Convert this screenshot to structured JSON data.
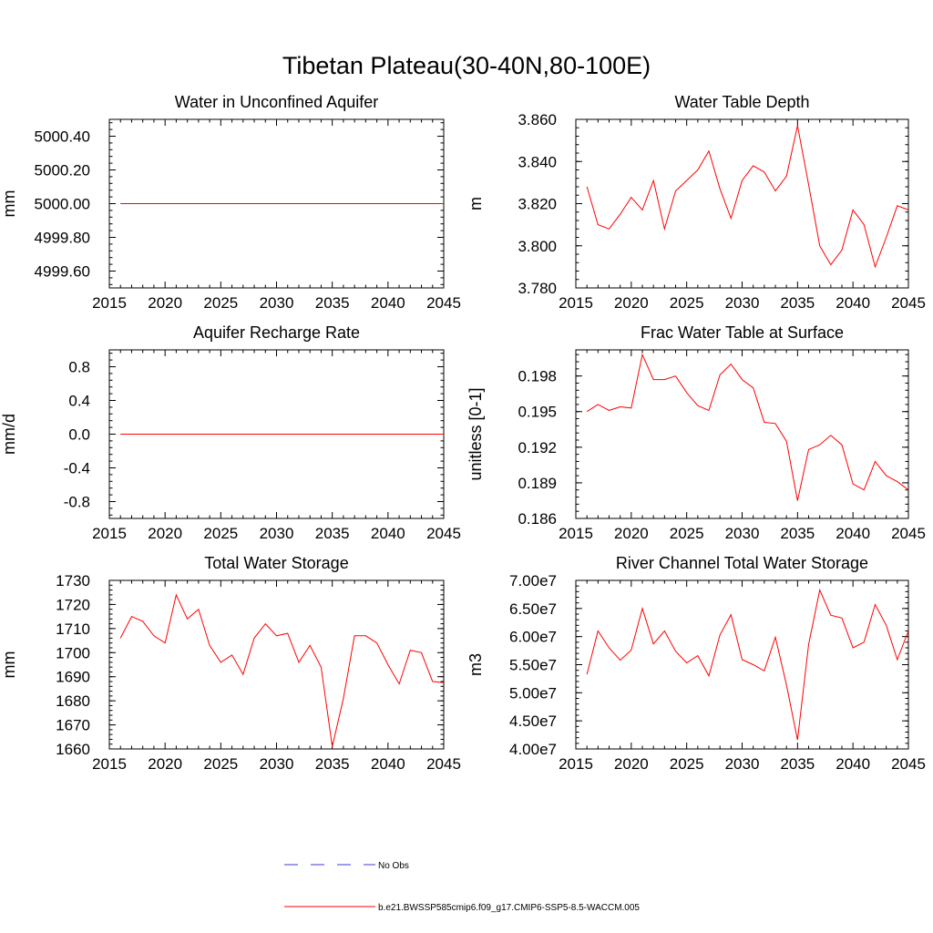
{
  "figure": {
    "title": "Tibetan Plateau(30-40N,80-100E)"
  },
  "legend": {
    "entries": [
      {
        "label": "No Obs",
        "color": "#3b3bd9",
        "style": "dashed"
      },
      {
        "label": "b.e21.BWSSP585cmip6.f09_g17.CMIP6-SSP5-8.5-WACCM.005",
        "color": "#ff0000",
        "style": "solid"
      }
    ]
  },
  "chart_data": [
    {
      "type": "line",
      "title": "Water in Unconfined Aquifer",
      "ylabel": "mm",
      "xlim": [
        2015,
        2045
      ],
      "ylim": [
        4999.5,
        5000.5
      ],
      "xticks": [
        "2015",
        "2020",
        "2025",
        "2030",
        "2035",
        "2040",
        "2045"
      ],
      "yticks": [
        "4999.60",
        "4999.80",
        "5000.00",
        "5000.20",
        "5000.40"
      ],
      "x": [
        2016,
        2017,
        2018,
        2019,
        2020,
        2021,
        2022,
        2023,
        2024,
        2025,
        2026,
        2027,
        2028,
        2029,
        2030,
        2031,
        2032,
        2033,
        2034,
        2035,
        2036,
        2037,
        2038,
        2039,
        2040,
        2041,
        2042,
        2043,
        2044,
        2045
      ],
      "series": [
        {
          "color": "#ff0000",
          "values": [
            5000,
            5000,
            5000,
            5000,
            5000,
            5000,
            5000,
            5000,
            5000,
            5000,
            5000,
            5000,
            5000,
            5000,
            5000,
            5000,
            5000,
            5000,
            5000,
            5000,
            5000,
            5000,
            5000,
            5000,
            5000,
            5000,
            5000,
            5000,
            5000,
            5000
          ]
        }
      ]
    },
    {
      "type": "line",
      "title": "Water Table Depth",
      "ylabel": "m",
      "xlim": [
        2015,
        2045
      ],
      "ylim": [
        3.78,
        3.86
      ],
      "xticks": [
        "2015",
        "2020",
        "2025",
        "2030",
        "2035",
        "2040",
        "2045"
      ],
      "yticks": [
        "3.780",
        "3.800",
        "3.820",
        "3.840",
        "3.860"
      ],
      "x": [
        2016,
        2017,
        2018,
        2019,
        2020,
        2021,
        2022,
        2023,
        2024,
        2025,
        2026,
        2027,
        2028,
        2029,
        2030,
        2031,
        2032,
        2033,
        2034,
        2035,
        2036,
        2037,
        2038,
        2039,
        2040,
        2041,
        2042,
        2043,
        2044,
        2045
      ],
      "series": [
        {
          "color": "#ff0000",
          "values": [
            3.828,
            3.81,
            3.808,
            3.815,
            3.823,
            3.817,
            3.831,
            3.808,
            3.826,
            3.831,
            3.836,
            3.845,
            3.827,
            3.813,
            3.831,
            3.838,
            3.835,
            3.826,
            3.833,
            3.857,
            3.829,
            3.8,
            3.791,
            3.798,
            3.817,
            3.81,
            3.79,
            3.804,
            3.819,
            3.817
          ]
        }
      ]
    },
    {
      "type": "line",
      "title": "Aquifer Recharge Rate",
      "ylabel": "mm/d",
      "xlim": [
        2015,
        2045
      ],
      "ylim": [
        -1.0,
        1.0
      ],
      "xticks": [
        "2015",
        "2020",
        "2025",
        "2030",
        "2035",
        "2040",
        "2045"
      ],
      "yticks": [
        "-0.8",
        "-0.4",
        "0.0",
        "0.4",
        "0.8"
      ],
      "x": [
        2016,
        2017,
        2018,
        2019,
        2020,
        2021,
        2022,
        2023,
        2024,
        2025,
        2026,
        2027,
        2028,
        2029,
        2030,
        2031,
        2032,
        2033,
        2034,
        2035,
        2036,
        2037,
        2038,
        2039,
        2040,
        2041,
        2042,
        2043,
        2044,
        2045
      ],
      "series": [
        {
          "color": "#ff0000",
          "values": [
            0,
            0,
            0,
            0,
            0,
            0,
            0,
            0,
            0,
            0,
            0,
            0,
            0,
            0,
            0,
            0,
            0,
            0,
            0,
            0,
            0,
            0,
            0,
            0,
            0,
            0,
            0,
            0,
            0,
            0
          ]
        }
      ]
    },
    {
      "type": "line",
      "title": "Frac Water Table at Surface",
      "ylabel": "unitless [0-1]",
      "xlim": [
        2015,
        2045
      ],
      "ylim": [
        0.186,
        0.2002
      ],
      "xticks": [
        "2015",
        "2020",
        "2025",
        "2030",
        "2035",
        "2040",
        "2045"
      ],
      "yticks": [
        "0.186",
        "0.189",
        "0.192",
        "0.195",
        "0.198"
      ],
      "x": [
        2016,
        2017,
        2018,
        2019,
        2020,
        2021,
        2022,
        2023,
        2024,
        2025,
        2026,
        2027,
        2028,
        2029,
        2030,
        2031,
        2032,
        2033,
        2034,
        2035,
        2036,
        2037,
        2038,
        2039,
        2040,
        2041,
        2042,
        2043,
        2044,
        2045
      ],
      "series": [
        {
          "color": "#ff0000",
          "values": [
            0.195,
            0.1956,
            0.1951,
            0.1954,
            0.1953,
            0.1998,
            0.1977,
            0.1977,
            0.198,
            0.1966,
            0.1955,
            0.1951,
            0.1981,
            0.199,
            0.1977,
            0.197,
            0.1941,
            0.194,
            0.1925,
            0.1875,
            0.1918,
            0.1922,
            0.193,
            0.1922,
            0.1889,
            0.1884,
            0.1908,
            0.1896,
            0.1891,
            0.1884
          ]
        }
      ]
    },
    {
      "type": "line",
      "title": "Total Water Storage",
      "ylabel": "mm",
      "xlim": [
        2015,
        2045
      ],
      "ylim": [
        1660,
        1730
      ],
      "xticks": [
        "2015",
        "2020",
        "2025",
        "2030",
        "2035",
        "2040",
        "2045"
      ],
      "yticks": [
        "1660",
        "1670",
        "1680",
        "1690",
        "1700",
        "1710",
        "1720",
        "1730"
      ],
      "x": [
        2016,
        2017,
        2018,
        2019,
        2020,
        2021,
        2022,
        2023,
        2024,
        2025,
        2026,
        2027,
        2028,
        2029,
        2030,
        2031,
        2032,
        2033,
        2034,
        2035,
        2036,
        2037,
        2038,
        2039,
        2040,
        2041,
        2042,
        2043,
        2044,
        2045
      ],
      "series": [
        {
          "color": "#ff0000",
          "values": [
            1706,
            1715,
            1713,
            1707,
            1704,
            1724,
            1714,
            1718,
            1703,
            1696,
            1699,
            1691,
            1706,
            1712,
            1707,
            1708,
            1696,
            1703,
            1694,
            1661,
            1681,
            1707,
            1707,
            1704,
            1695,
            1687,
            1701,
            1700,
            1688,
            1687.5
          ]
        }
      ]
    },
    {
      "type": "line",
      "title": "River Channel Total Water Storage",
      "ylabel": "m3",
      "xlim": [
        2015,
        2045
      ],
      "ylim": [
        40000000,
        70000000
      ],
      "xticks": [
        "2015",
        "2020",
        "2025",
        "2030",
        "2035",
        "2040",
        "2045"
      ],
      "yticks": [
        "4.00e7",
        "4.50e7",
        "5.00e7",
        "5.50e7",
        "6.00e7",
        "6.50e7",
        "7.00e7"
      ],
      "x": [
        2016,
        2017,
        2018,
        2019,
        2020,
        2021,
        2022,
        2023,
        2024,
        2025,
        2026,
        2027,
        2028,
        2029,
        2030,
        2031,
        2032,
        2033,
        2034,
        2035,
        2036,
        2037,
        2038,
        2039,
        2040,
        2041,
        2042,
        2043,
        2044,
        2045
      ],
      "series": [
        {
          "color": "#ff0000",
          "values": [
            53300000,
            61000000,
            58000000,
            55800000,
            57600000,
            65000000,
            58700000,
            61000000,
            57400000,
            55300000,
            56600000,
            53000000,
            60300000,
            63900000,
            55900000,
            55000000,
            53900000,
            59900000,
            51400000,
            41600000,
            58600000,
            68300000,
            63800000,
            63300000,
            58000000,
            59000000,
            65700000,
            62000000,
            55900000,
            61000000
          ]
        }
      ]
    }
  ]
}
